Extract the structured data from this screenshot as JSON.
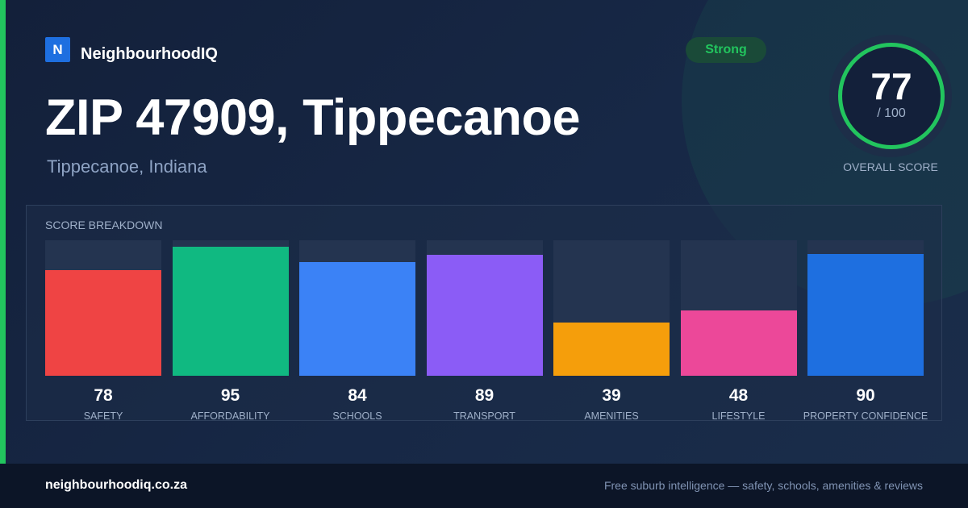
{
  "brand": {
    "logo_letter": "N",
    "name": "NeighbourhoodIQ"
  },
  "header": {
    "title": "ZIP 47909, Tippecanoe",
    "subtitle": "Tippecanoe, Indiana",
    "badge": "Strong"
  },
  "score": {
    "value": "77",
    "max_label": "/ 100",
    "label": "OVERALL SCORE",
    "fraction": 0.77
  },
  "breakdown": {
    "title": "SCORE BREAKDOWN"
  },
  "chart_data": {
    "type": "bar",
    "title": "SCORE BREAKDOWN",
    "categories": [
      "SAFETY",
      "AFFORDABILITY",
      "SCHOOLS",
      "TRANSPORT",
      "AMENITIES",
      "LIFESTYLE",
      "PROPERTY CONFIDENCE"
    ],
    "values": [
      78,
      95,
      84,
      89,
      39,
      48,
      90
    ],
    "colors": [
      "#ef4444",
      "#10b981",
      "#3b82f6",
      "#8b5cf6",
      "#f59e0b",
      "#ec4899",
      "#1e6fe0"
    ],
    "ylim": [
      0,
      100
    ],
    "grid": false,
    "legend": "none"
  },
  "footer": {
    "url": "neighbourhoodiq.co.za",
    "tagline": "Free suburb intelligence — safety, schools, amenities & reviews"
  },
  "colors": {
    "accent": "#22c55e",
    "background": "#14213a",
    "footer": "#0c1527"
  }
}
